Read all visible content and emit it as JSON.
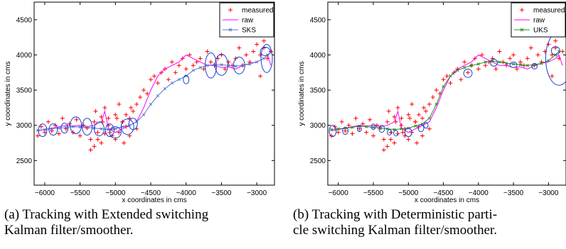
{
  "chart_data": [
    {
      "type": "line",
      "panel": "a",
      "xlabel": "x coordinates in cms",
      "ylabel": "y coordinates in cms",
      "xlim": [
        -6150,
        -2750
      ],
      "ylim": [
        2150,
        4750
      ],
      "xticks": [
        -6000,
        -5500,
        -5000,
        -4500,
        -4000,
        -3500,
        -3000
      ],
      "xtick_labels": [
        "−6000",
        "−5500",
        "−5000",
        "−4500",
        "−4000",
        "−3500",
        "−3000"
      ],
      "yticks": [
        2500,
        3000,
        3500,
        4000,
        4500
      ],
      "ytick_labels": [
        "2500",
        "3000",
        "3500",
        "4000",
        "4500"
      ],
      "legend_position": "top-right",
      "series": [
        {
          "name": "measured",
          "kind": "scatter",
          "color": "#ff0000",
          "x": [
            -6100,
            -6050,
            -6000,
            -5950,
            -5900,
            -5850,
            -5800,
            -5750,
            -5700,
            -5650,
            -5600,
            -5550,
            -5500,
            -5450,
            -5400,
            -5350,
            -5300,
            -5250,
            -5200,
            -5150,
            -5100,
            -5050,
            -5000,
            -4950,
            -4900,
            -4850,
            -4800,
            -4750,
            -4700,
            -5300,
            -5250,
            -5200,
            -5150,
            -5100,
            -5050,
            -5000,
            -4950,
            -4900,
            -4850,
            -4800,
            -5350,
            -5280,
            -5180,
            -5080,
            -4980,
            -4880,
            -4780,
            -4700,
            -4650,
            -4600,
            -4550,
            -4500,
            -4450,
            -4400,
            -4350,
            -4300,
            -4250,
            -4200,
            -4150,
            -4100,
            -4050,
            -4000,
            -3950,
            -3900,
            -3850,
            -3800,
            -3750,
            -3700,
            -3650,
            -3600,
            -3550,
            -3500,
            -3450,
            -3400,
            -3350,
            -3300,
            -3250,
            -3200,
            -3150,
            -3100,
            -3050,
            -3000,
            -2950,
            -2900,
            -2850,
            -2800,
            -2900,
            -2950
          ],
          "y": [
            2850,
            2980,
            2900,
            3050,
            2920,
            3000,
            2880,
            3100,
            2950,
            3020,
            2900,
            3080,
            2850,
            3000,
            2960,
            2800,
            3050,
            2900,
            3120,
            2880,
            3000,
            2950,
            3150,
            2900,
            3050,
            2980,
            3100,
            3200,
            2950,
            2700,
            2800,
            2750,
            3250,
            3100,
            2850,
            2800,
            3300,
            3050,
            3150,
            2850,
            2650,
            3200,
            3050,
            2900,
            3100,
            2750,
            3250,
            3300,
            3400,
            3500,
            3450,
            3650,
            3700,
            3600,
            3750,
            3800,
            3650,
            3900,
            3750,
            3850,
            3950,
            3800,
            4000,
            3850,
            3900,
            3950,
            3800,
            4050,
            3900,
            3850,
            3950,
            4000,
            3800,
            3900,
            3850,
            3950,
            4100,
            3850,
            4000,
            3900,
            4050,
            4150,
            4000,
            4100,
            3950,
            4050,
            4200,
            3700
          ]
        },
        {
          "name": "raw",
          "kind": "line",
          "color": "#ff00ff",
          "x": [
            -6100,
            -6000,
            -5900,
            -5800,
            -5700,
            -5600,
            -5500,
            -5400,
            -5300,
            -5200,
            -5150,
            -5100,
            -5000,
            -4900,
            -4800,
            -4700,
            -4600,
            -4500,
            -4400,
            -4300,
            -4200,
            -4100,
            -4000,
            -3900,
            -3800,
            -3700,
            -3600,
            -3500,
            -3400,
            -3300,
            -3200,
            -3100,
            -3000,
            -2900,
            -2850,
            -2800
          ],
          "y": [
            2920,
            2940,
            2960,
            2980,
            3000,
            2990,
            3000,
            2980,
            3000,
            3050,
            3200,
            2950,
            2900,
            2950,
            3000,
            3050,
            3250,
            3500,
            3700,
            3800,
            3850,
            3900,
            4000,
            3950,
            3900,
            3850,
            3850,
            3820,
            3830,
            3800,
            3850,
            3880,
            3900,
            3950,
            4000,
            3850
          ]
        },
        {
          "name": "SKS",
          "kind": "line-marker",
          "color": "#5a78c8",
          "x": [
            -6100,
            -6000,
            -5900,
            -5800,
            -5700,
            -5600,
            -5500,
            -5400,
            -5300,
            -5200,
            -5100,
            -5000,
            -4900,
            -4800,
            -4700,
            -4600,
            -4500,
            -4400,
            -4300,
            -4200,
            -4100,
            -4000,
            -3900,
            -3800,
            -3700,
            -3600,
            -3500,
            -3400,
            -3300,
            -3200,
            -3100,
            -3000,
            -2900,
            -2850
          ],
          "y": [
            2930,
            2940,
            2950,
            2960,
            2970,
            2980,
            2975,
            2970,
            2960,
            2950,
            2940,
            2950,
            2980,
            3000,
            3050,
            3150,
            3300,
            3420,
            3520,
            3600,
            3650,
            3700,
            3780,
            3820,
            3850,
            3860,
            3860,
            3850,
            3840,
            3850,
            3870,
            3900,
            3950,
            4000
          ]
        }
      ],
      "ellipses": [
        {
          "cx": -6030,
          "cy": 2930,
          "rx": 60,
          "ry": 90
        },
        {
          "cx": -5880,
          "cy": 2940,
          "rx": 60,
          "ry": 80
        },
        {
          "cx": -5720,
          "cy": 2960,
          "rx": 50,
          "ry": 70
        },
        {
          "cx": -5560,
          "cy": 3000,
          "rx": 80,
          "ry": 120
        },
        {
          "cx": -5400,
          "cy": 2980,
          "rx": 70,
          "ry": 120
        },
        {
          "cx": -5230,
          "cy": 2950,
          "rx": 70,
          "ry": 100
        },
        {
          "cx": -5080,
          "cy": 2930,
          "rx": 60,
          "ry": 90
        },
        {
          "cx": -5000,
          "cy": 2900,
          "rx": 80,
          "ry": 80
        },
        {
          "cx": -4830,
          "cy": 2980,
          "rx": 90,
          "ry": 110
        },
        {
          "cx": -4750,
          "cy": 3020,
          "rx": 60,
          "ry": 80
        },
        {
          "cx": -4000,
          "cy": 3650,
          "rx": 40,
          "ry": 60
        },
        {
          "cx": -3650,
          "cy": 3850,
          "rx": 80,
          "ry": 180
        },
        {
          "cx": -3500,
          "cy": 3860,
          "rx": 90,
          "ry": 150
        },
        {
          "cx": -3250,
          "cy": 3850,
          "rx": 80,
          "ry": 120
        },
        {
          "cx": -2880,
          "cy": 4050,
          "rx": 70,
          "ry": 60
        },
        {
          "cx": -2860,
          "cy": 3950,
          "rx": 80,
          "ry": 200
        }
      ]
    },
    {
      "type": "line",
      "panel": "b",
      "xlabel": "x coordinates in cms",
      "ylabel": "y coordinates in cms",
      "xlim": [
        -6150,
        -2750
      ],
      "ylim": [
        2150,
        4750
      ],
      "xticks": [
        -6000,
        -5500,
        -5000,
        -4500,
        -4000,
        -3500,
        -3000
      ],
      "xtick_labels": [
        "−6000",
        "−5500",
        "−5000",
        "−4500",
        "−4000",
        "−3500",
        "−3000"
      ],
      "yticks": [
        2500,
        3000,
        3500,
        4000,
        4500
      ],
      "ytick_labels": [
        "2500",
        "3000",
        "3500",
        "4000",
        "4500"
      ],
      "legend_position": "top-right",
      "series": [
        {
          "name": "measured",
          "kind": "scatter",
          "color": "#ff0000",
          "x": [
            -6100,
            -6050,
            -6000,
            -5950,
            -5900,
            -5850,
            -5800,
            -5750,
            -5700,
            -5650,
            -5600,
            -5550,
            -5500,
            -5450,
            -5400,
            -5350,
            -5300,
            -5250,
            -5200,
            -5150,
            -5100,
            -5050,
            -5000,
            -4950,
            -4900,
            -4850,
            -4800,
            -4750,
            -4700,
            -5300,
            -5250,
            -5200,
            -5150,
            -5100,
            -5050,
            -5000,
            -4950,
            -4900,
            -4850,
            -4800,
            -5350,
            -5280,
            -5180,
            -5080,
            -4980,
            -4880,
            -4780,
            -4700,
            -4650,
            -4600,
            -4550,
            -4500,
            -4450,
            -4400,
            -4350,
            -4300,
            -4250,
            -4200,
            -4150,
            -4100,
            -4050,
            -4000,
            -3950,
            -3900,
            -3850,
            -3800,
            -3750,
            -3700,
            -3650,
            -3600,
            -3550,
            -3500,
            -3450,
            -3400,
            -3350,
            -3300,
            -3250,
            -3200,
            -3150,
            -3100,
            -3050,
            -3000,
            -2950,
            -2900,
            -2850,
            -2800,
            -2900,
            -2950
          ],
          "y": [
            2850,
            2980,
            2900,
            3050,
            2920,
            3000,
            2880,
            3100,
            2950,
            3020,
            2900,
            3080,
            2850,
            3000,
            2960,
            2800,
            3050,
            2900,
            3120,
            2880,
            3000,
            2950,
            3150,
            2900,
            3050,
            2980,
            3100,
            3200,
            2950,
            2700,
            2800,
            2750,
            3250,
            3100,
            2850,
            2800,
            3300,
            3050,
            3150,
            2850,
            2650,
            3200,
            3050,
            2900,
            3100,
            2750,
            3250,
            3300,
            3400,
            3500,
            3450,
            3650,
            3700,
            3600,
            3750,
            3800,
            3650,
            3900,
            3750,
            3850,
            3950,
            3800,
            4000,
            3850,
            3900,
            3950,
            3800,
            4050,
            3900,
            3850,
            3950,
            4000,
            3800,
            3900,
            3850,
            3950,
            4100,
            3850,
            4000,
            3900,
            4050,
            4150,
            4000,
            4100,
            3950,
            4050,
            4200,
            3700
          ]
        },
        {
          "name": "raw",
          "kind": "line",
          "color": "#ff00ff",
          "x": [
            -6100,
            -6000,
            -5900,
            -5800,
            -5700,
            -5600,
            -5500,
            -5400,
            -5300,
            -5200,
            -5150,
            -5100,
            -5000,
            -4900,
            -4800,
            -4700,
            -4600,
            -4500,
            -4400,
            -4300,
            -4200,
            -4100,
            -4000,
            -3900,
            -3800,
            -3700,
            -3600,
            -3500,
            -3400,
            -3300,
            -3200,
            -3100,
            -3000,
            -2900,
            -2850,
            -2800
          ],
          "y": [
            2920,
            2940,
            2960,
            2980,
            3000,
            2990,
            3000,
            2980,
            3000,
            3050,
            3200,
            2950,
            2900,
            2950,
            3000,
            3050,
            3250,
            3500,
            3700,
            3800,
            3850,
            3900,
            4000,
            3950,
            3900,
            3850,
            3850,
            3820,
            3830,
            3800,
            3850,
            3880,
            3900,
            3950,
            4000,
            3850
          ]
        },
        {
          "name": "UKS",
          "kind": "line-marker",
          "color": "#2e8b2e",
          "x": [
            -6100,
            -6000,
            -5900,
            -5800,
            -5700,
            -5600,
            -5500,
            -5400,
            -5300,
            -5200,
            -5100,
            -5000,
            -4900,
            -4800,
            -4700,
            -4600,
            -4500,
            -4400,
            -4300,
            -4200,
            -4100,
            -4000,
            -3900,
            -3800,
            -3700,
            -3600,
            -3500,
            -3400,
            -3300,
            -3200,
            -3100,
            -3000,
            -2900,
            -2850
          ],
          "y": [
            2940,
            2950,
            2960,
            2970,
            2990,
            2980,
            2970,
            2960,
            2950,
            2940,
            2950,
            2960,
            2990,
            3020,
            3100,
            3300,
            3550,
            3700,
            3780,
            3820,
            3850,
            3870,
            3900,
            3910,
            3900,
            3880,
            3870,
            3860,
            3850,
            3860,
            3880,
            3920,
            4000,
            4050
          ]
        }
      ],
      "ellipses": [
        {
          "cx": -6080,
          "cy": 2920,
          "rx": 50,
          "ry": 80
        },
        {
          "cx": -5900,
          "cy": 2920,
          "rx": 40,
          "ry": 50
        },
        {
          "cx": -5700,
          "cy": 2950,
          "rx": 30,
          "ry": 40
        },
        {
          "cx": -5500,
          "cy": 2980,
          "rx": 30,
          "ry": 40
        },
        {
          "cx": -5380,
          "cy": 2950,
          "rx": 40,
          "ry": 50
        },
        {
          "cx": -5270,
          "cy": 2900,
          "rx": 30,
          "ry": 40
        },
        {
          "cx": -5180,
          "cy": 2890,
          "rx": 30,
          "ry": 40
        },
        {
          "cx": -5000,
          "cy": 2900,
          "rx": 50,
          "ry": 60
        },
        {
          "cx": -4820,
          "cy": 2960,
          "rx": 40,
          "ry": 50
        },
        {
          "cx": -4750,
          "cy": 3000,
          "rx": 30,
          "ry": 40
        },
        {
          "cx": -4150,
          "cy": 3740,
          "rx": 60,
          "ry": 60
        },
        {
          "cx": -3780,
          "cy": 3890,
          "rx": 50,
          "ry": 50
        },
        {
          "cx": -3500,
          "cy": 3860,
          "rx": 50,
          "ry": 40
        },
        {
          "cx": -3200,
          "cy": 3840,
          "rx": 40,
          "ry": 40
        },
        {
          "cx": -2900,
          "cy": 4060,
          "rx": 60,
          "ry": 60
        },
        {
          "cx": -2850,
          "cy": 3950,
          "rx": 190,
          "ry": 380
        }
      ]
    }
  ],
  "captions": {
    "a_line1": "(a) Tracking with Extended switching",
    "a_line2": "Kalman filter/smoother.",
    "b_line1": "(b) Tracking with Deterministic parti-",
    "b_line2": "cle switching Kalman filter/smoother."
  }
}
